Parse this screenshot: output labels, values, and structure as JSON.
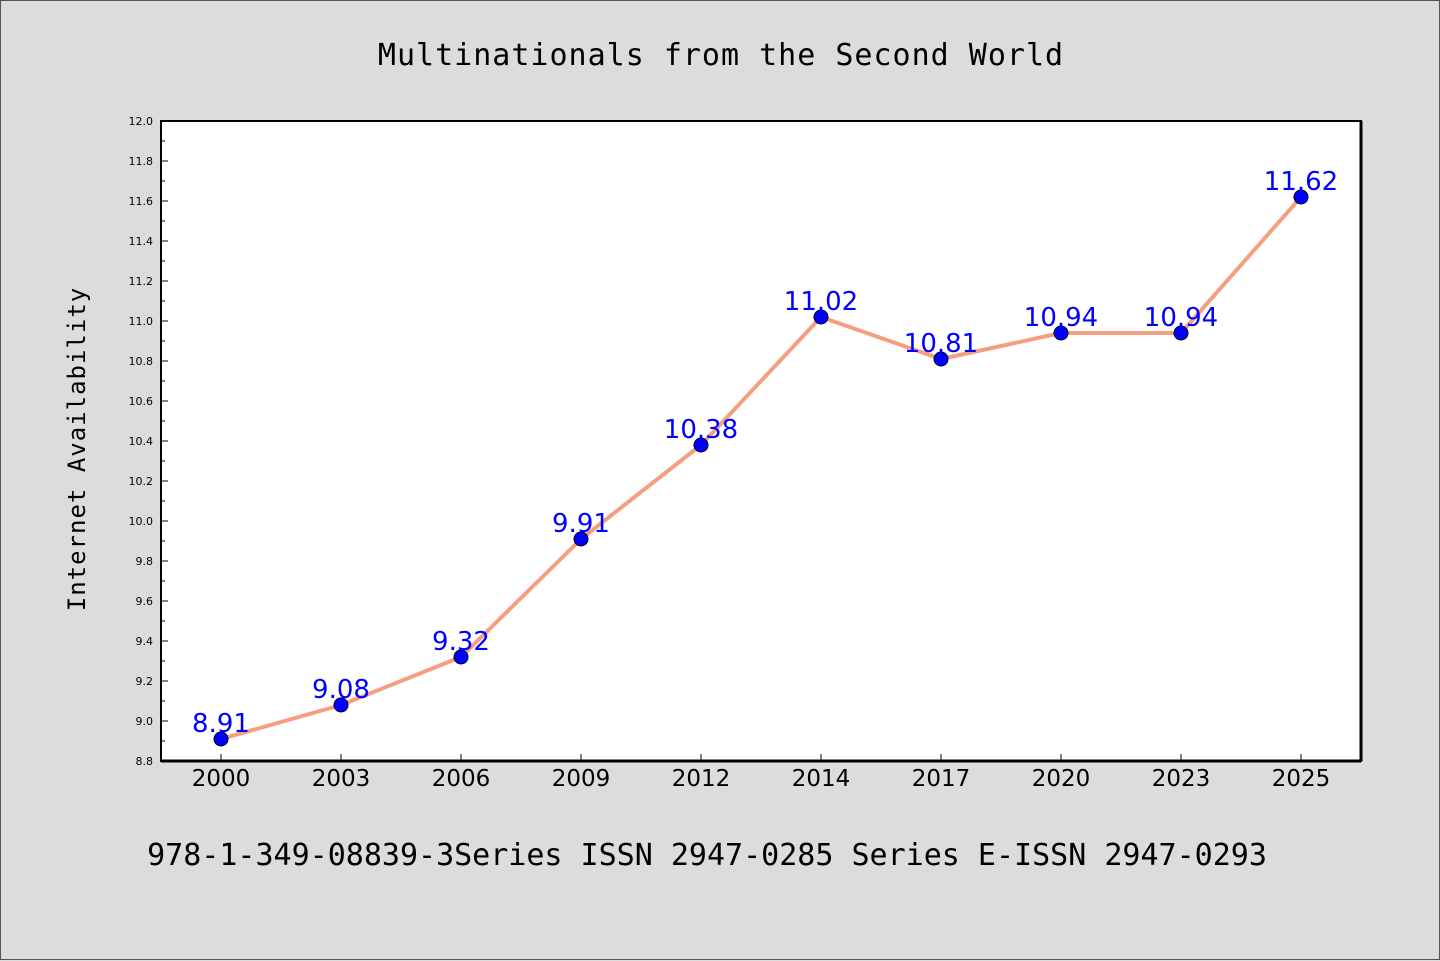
{
  "chart_data": {
    "type": "line",
    "title": "Multinationals from the Second World",
    "xlabel": "",
    "ylabel": "Internet Availability",
    "categories": [
      "2000",
      "2003",
      "2006",
      "2009",
      "2012",
      "2014",
      "2017",
      "2020",
      "2023",
      "2025"
    ],
    "series": [
      {
        "values": [
          8.91,
          9.08,
          9.32,
          9.91,
          10.38,
          11.02,
          10.81,
          10.94,
          10.94,
          11.62
        ]
      }
    ],
    "data_labels": [
      "8.91",
      "9.08",
      "9.32",
      "9.91",
      "10.38",
      "11.02",
      "10.81",
      "10.94",
      "10.94",
      "11.62"
    ],
    "ylim": [
      8.8,
      12.0
    ],
    "yticks": [
      "8.8",
      "9.0",
      "9.2",
      "9.4",
      "9.6",
      "9.8",
      "10.0",
      "10.2",
      "10.4",
      "10.6",
      "10.8",
      "11.0",
      "11.2",
      "11.4",
      "11.6",
      "11.8",
      "12.0"
    ],
    "grid": false,
    "legend": "none",
    "line_color": "#f4a080",
    "marker_color": "#0000ff",
    "label_color": "#0000ff"
  },
  "footer": {
    "text": "978-1-349-08839-3Series ISSN 2947-0285 Series E-ISSN 2947-0293"
  }
}
